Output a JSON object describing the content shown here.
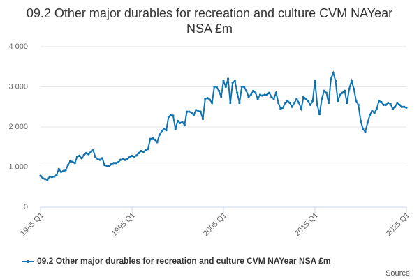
{
  "chart_data": {
    "type": "line",
    "title": "09.2 Other major durables for recreation and culture CVM NAYear NSA £m",
    "categories": [
      "1985 Q1",
      null,
      null,
      null,
      null,
      null,
      null,
      null,
      null,
      null,
      null,
      null,
      null,
      null,
      null,
      null,
      null,
      null,
      null,
      null,
      null,
      null,
      null,
      null,
      null,
      null,
      null,
      null,
      null,
      null,
      null,
      null,
      null,
      null,
      null,
      null,
      null,
      null,
      null,
      null,
      "1995 Q1",
      null,
      null,
      null,
      null,
      null,
      null,
      null,
      null,
      null,
      null,
      null,
      null,
      null,
      null,
      null,
      null,
      null,
      null,
      null,
      null,
      null,
      null,
      null,
      null,
      null,
      null,
      null,
      null,
      null,
      null,
      null,
      null,
      null,
      null,
      null,
      null,
      null,
      null,
      null,
      "2005 Q1",
      null,
      null,
      null,
      null,
      null,
      null,
      null,
      null,
      null,
      null,
      null,
      null,
      null,
      null,
      null,
      null,
      null,
      null,
      null,
      null,
      null,
      null,
      null,
      null,
      null,
      null,
      null,
      null,
      null,
      null,
      null,
      null,
      null,
      null,
      null,
      null,
      null,
      null,
      null,
      "2015 Q1",
      null,
      null,
      null,
      null,
      null,
      null,
      null,
      null,
      null,
      null,
      null,
      null,
      null,
      null,
      null,
      null,
      null,
      null,
      null,
      null,
      null,
      null,
      null,
      null,
      null,
      null,
      null,
      null,
      null,
      null,
      null,
      null,
      null,
      null,
      null,
      null,
      null,
      null,
      null,
      "2025 Q1"
    ],
    "series": [
      {
        "name": "09.2 Other major durables for recreation and culture CVM NAYear NSA £m",
        "color": "#0f73b2",
        "values": [
          780,
          720,
          700,
          680,
          760,
          750,
          760,
          800,
          950,
          880,
          900,
          920,
          1050,
          1150,
          1130,
          1100,
          1250,
          1280,
          1220,
          1300,
          1350,
          1320,
          1380,
          1420,
          1250,
          1200,
          1180,
          1220,
          1050,
          1030,
          1020,
          1070,
          1100,
          1100,
          1120,
          1180,
          1200,
          1180,
          1200,
          1250,
          1280,
          1260,
          1290,
          1350,
          1400,
          1380,
          1420,
          1450,
          1700,
          1720,
          1680,
          1620,
          1800,
          1900,
          1950,
          1920,
          2250,
          2300,
          2280,
          1950,
          2150,
          2100,
          2120,
          2050,
          2380,
          2380,
          2360,
          2300,
          2420,
          2400,
          2380,
          2200,
          2700,
          2720,
          2680,
          2600,
          3000,
          3000,
          2900,
          2750,
          3150,
          3000,
          3200,
          2600,
          3100,
          3150,
          2850,
          2600,
          3000,
          3000,
          2900,
          2750,
          2800,
          2900,
          2850,
          2700,
          2800,
          2780,
          2800,
          2800,
          2850,
          2750,
          2700,
          2850,
          2600,
          2450,
          2480,
          2600,
          2650,
          2600,
          2500,
          2600,
          2700,
          2600,
          2450,
          2750,
          2700,
          2650,
          2550,
          2650,
          3150,
          2550,
          2320,
          2700,
          2900,
          2850,
          2600,
          3200,
          3350,
          3150,
          2650,
          2800,
          2850,
          2900,
          2600,
          2950,
          3150,
          2950,
          2650,
          2550,
          2150,
          1950,
          1880,
          2100,
          2300,
          2400,
          2350,
          2450,
          2650,
          2620,
          2550,
          2550,
          2600,
          2580,
          2450,
          2500,
          2600,
          2550,
          2500,
          2500,
          2480
        ]
      }
    ],
    "ylim": [
      0,
      4000
    ],
    "yticks": [
      0,
      {
        "value": 1000,
        "label": "1 000"
      },
      {
        "value": 2000,
        "label": "2 000"
      },
      {
        "value": 3000,
        "label": "3 000"
      },
      {
        "value": 4000,
        "label": "4 000"
      }
    ],
    "grid": true,
    "source": "Source:"
  }
}
